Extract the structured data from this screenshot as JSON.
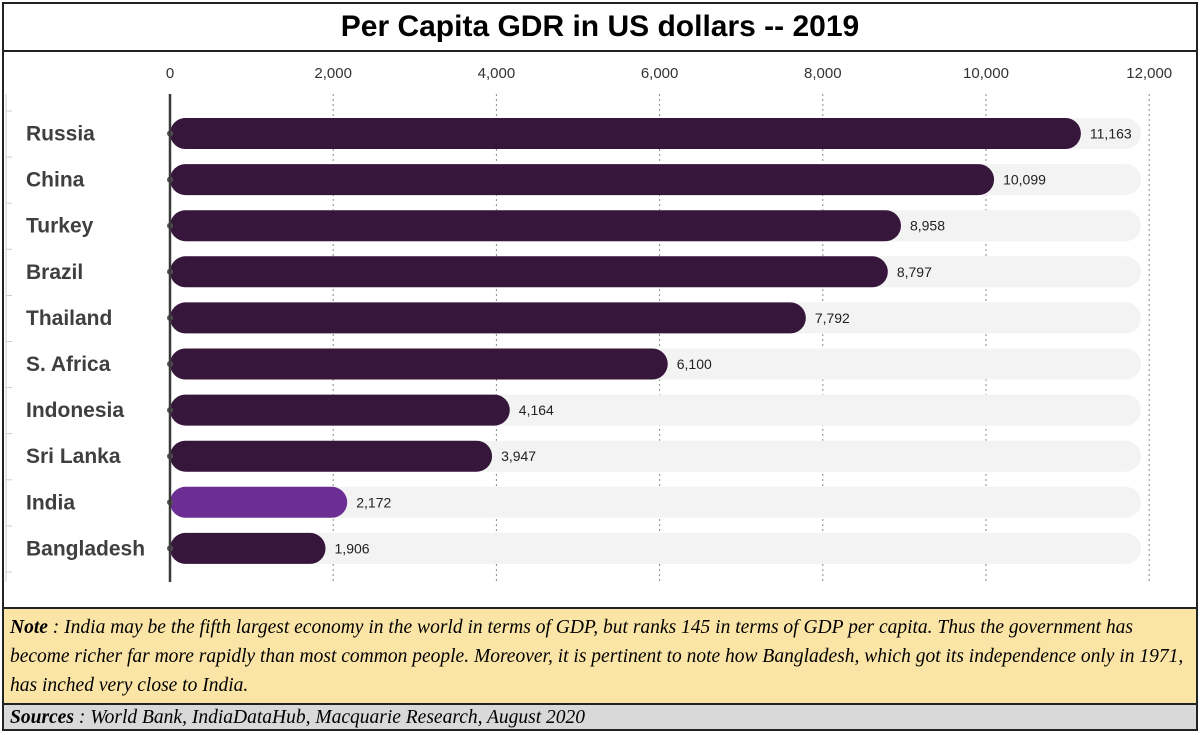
{
  "chart_data": {
    "type": "bar",
    "orientation": "horizontal",
    "title": "Per Capita GDR in US dollars -- 2019",
    "categories": [
      "Russia",
      "China",
      "Turkey",
      "Brazil",
      "Thailand",
      "S. Africa",
      "Indonesia",
      "Sri Lanka",
      "India",
      "Bangladesh"
    ],
    "values": [
      11163,
      10099,
      8958,
      8797,
      7792,
      6100,
      4164,
      3947,
      2172,
      1906
    ],
    "value_labels": [
      "11,163",
      "10,099",
      "8,958",
      "8,797",
      "7,792",
      "6,100",
      "4,164",
      "3,947",
      "2,172",
      "1,906"
    ],
    "highlight": "India",
    "xlim": [
      0,
      12000
    ],
    "x_ticks": [
      "0",
      "2,000",
      "4,000",
      "6,000",
      "8,000",
      "10,000",
      "12,000"
    ],
    "x_tick_values": [
      0,
      2000,
      4000,
      6000,
      8000,
      10000,
      12000
    ],
    "xlabel": "",
    "ylabel": "",
    "x_axis_position": "top",
    "grid": "vertical-dotted",
    "legend": "none",
    "colors": {
      "bar": "#36163a",
      "highlight": "#6b2f94",
      "track": "#f3f3f3",
      "grid": "#888888",
      "axis": "#555555"
    }
  },
  "note": {
    "label": "Note",
    "separator": " : ",
    "text": "India may be the  fifth largest economy  in the world in terms of GDP, but  ranks 145 in terms of GDP per capita.  Thus the government has become richer far more rapidly than most common people.  Moreover, it is pertinent to note how Bangladesh, which got its independence only in 1971, has inched very close to India."
  },
  "sources": {
    "label": "Sources",
    "separator": " : ",
    "text": "World Bank, IndiaDataHub, Macquarie Research, August 2020"
  }
}
